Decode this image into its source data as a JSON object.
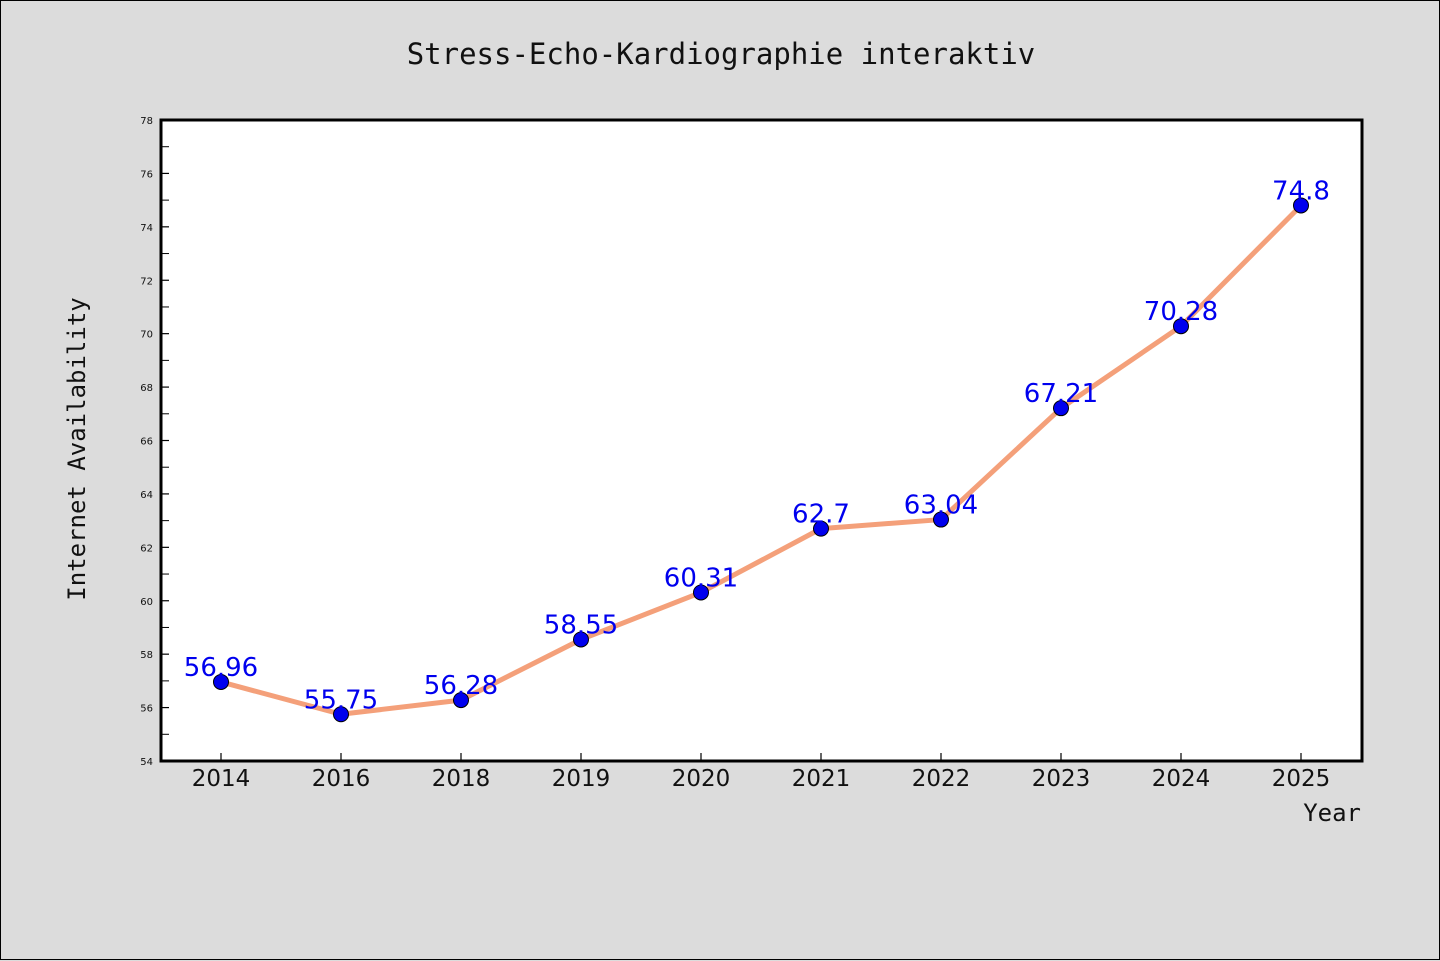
{
  "chart_data": {
    "type": "line",
    "title": "Stress-Echo-Kardiographie interaktiv",
    "xlabel": "Year",
    "ylabel": "Internet Availability",
    "categories": [
      "2014",
      "2016",
      "2018",
      "2019",
      "2020",
      "2021",
      "2022",
      "2023",
      "2024",
      "2025"
    ],
    "series": [
      {
        "values": [
          56.96,
          55.75,
          56.28,
          58.55,
          60.31,
          62.7,
          63.04,
          67.21,
          70.28,
          74.8
        ],
        "data_labels": [
          "56.96",
          "55.75",
          "56.28",
          "58.55",
          "60.31",
          "62.7",
          "63.04",
          "67.21",
          "70.28",
          "74.8"
        ]
      }
    ],
    "ylim": [
      54,
      78
    ],
    "yticks": [
      "54",
      "56",
      "58",
      "60",
      "62",
      "64",
      "66",
      "68",
      "70",
      "72",
      "74",
      "76",
      "78"
    ],
    "grid": false,
    "legend": "none",
    "colors": {
      "line": "#f4a07a",
      "marker": "#0000ee",
      "data_label": "#0000ee",
      "plot_background": "#ffffff",
      "figure_background": "#dcdcdc"
    }
  }
}
